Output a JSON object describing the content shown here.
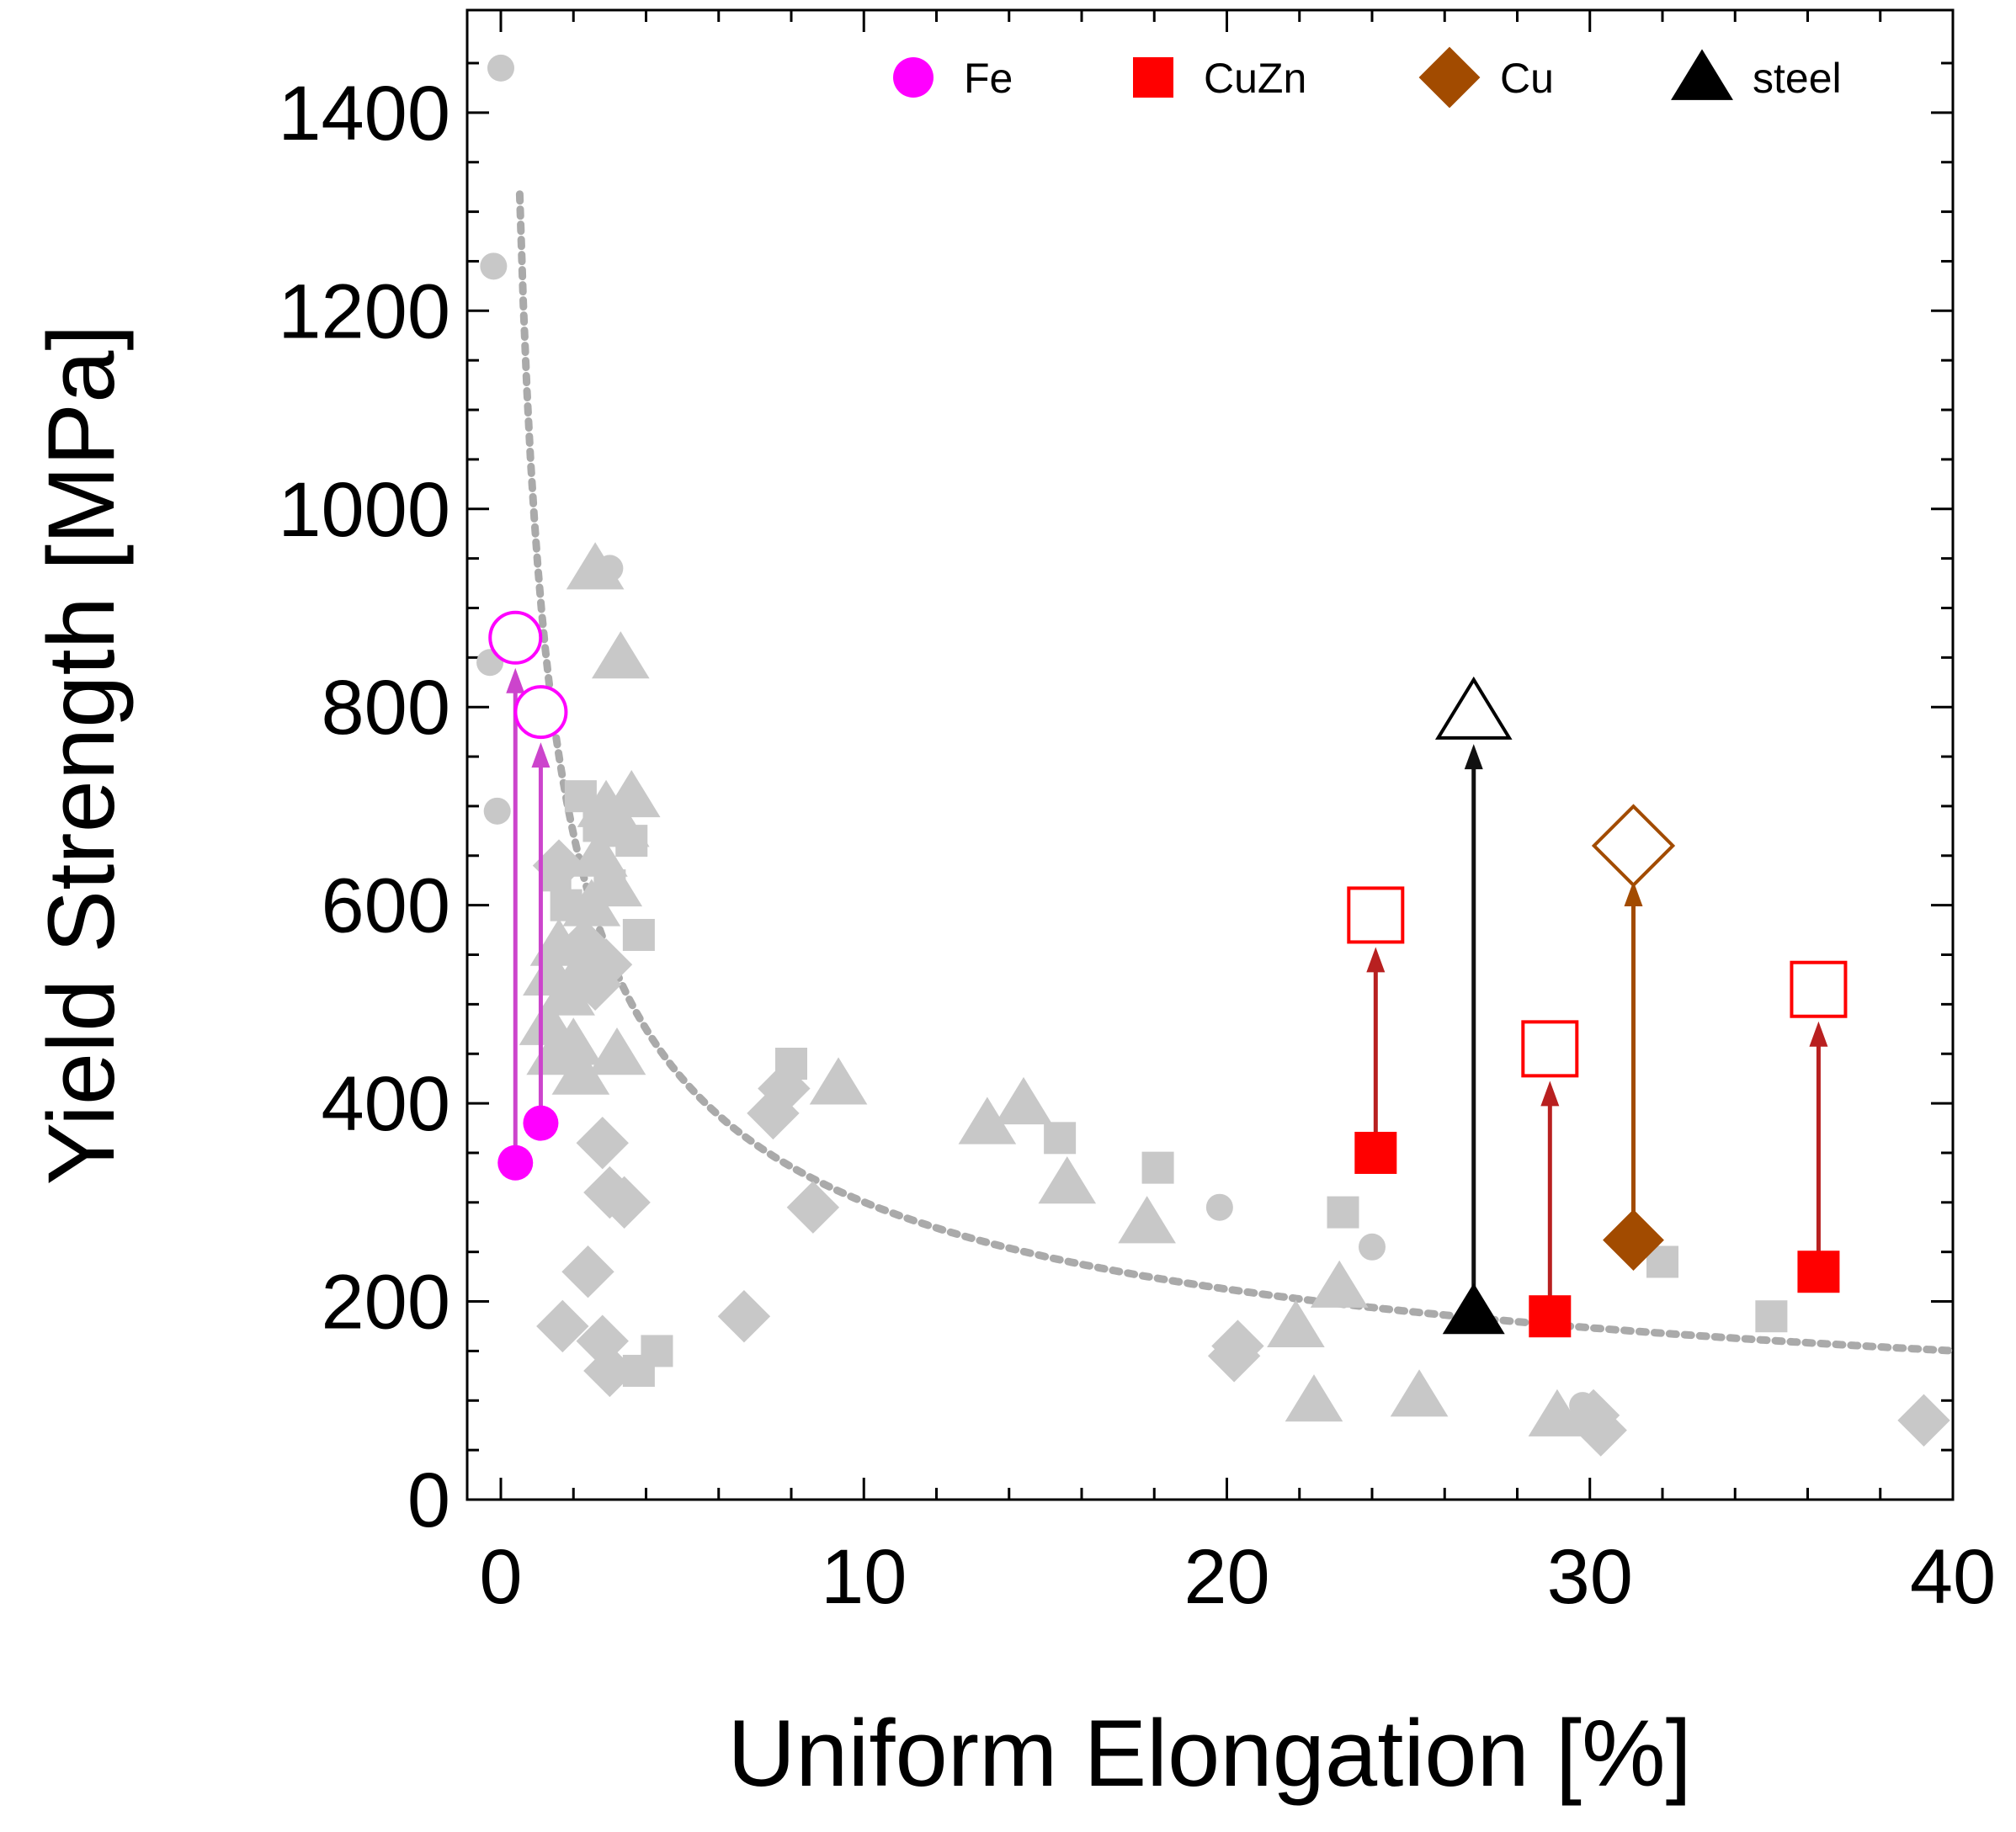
{
  "chart_data": {
    "type": "scatter",
    "xlabel": "Uniform Elongation [%]",
    "ylabel": "Yield Strength [MPa]",
    "xlim": [
      -1,
      40
    ],
    "ylim": [
      0,
      1500
    ],
    "x_ticks": [
      "0",
      "10",
      "20",
      "30",
      "40"
    ],
    "y_ticks": [
      "0",
      "200",
      "400",
      "600",
      "800",
      "1000",
      "1200",
      "1400"
    ],
    "legend_position": "top-right",
    "legend": [
      {
        "name": "Fe",
        "marker": "circle",
        "color": "#ff00ff"
      },
      {
        "name": "CuZn",
        "marker": "square",
        "color": "#ff0000"
      },
      {
        "name": "Cu",
        "marker": "diamond",
        "color": "#a24b00"
      },
      {
        "name": "steel",
        "marker": "triangle",
        "color": "#000000"
      }
    ],
    "trend_curve": {
      "style": "dotted",
      "color": "#aaaaaa",
      "approx": "y = 950 / x^0.5 (approx)"
    },
    "background_points": {
      "color": "#c8c8c8",
      "circle": [
        [
          0,
          1445
        ],
        [
          -0.2,
          1245
        ],
        [
          -0.3,
          845
        ],
        [
          -0.1,
          695
        ],
        [
          3,
          940
        ],
        [
          19.8,
          295
        ],
        [
          24,
          255
        ],
        [
          29.8,
          95
        ]
      ],
      "square": [
        [
          1.5,
          630
        ],
        [
          1.8,
          600
        ],
        [
          2.2,
          710
        ],
        [
          2.7,
          680
        ],
        [
          3,
          620
        ],
        [
          3.6,
          665
        ],
        [
          3.8,
          570
        ],
        [
          4.3,
          150
        ],
        [
          3.8,
          130
        ],
        [
          8,
          440
        ],
        [
          15.4,
          365
        ],
        [
          18.1,
          335
        ],
        [
          23.2,
          290
        ],
        [
          32,
          240
        ],
        [
          35,
          185
        ]
      ],
      "triangle": [
        [
          1.3,
          480
        ],
        [
          1.4,
          530
        ],
        [
          1.5,
          450
        ],
        [
          1.6,
          560
        ],
        [
          1.8,
          510
        ],
        [
          2,
          460
        ],
        [
          2.2,
          430
        ],
        [
          2.3,
          540
        ],
        [
          2.5,
          600
        ],
        [
          2.7,
          650
        ],
        [
          2.9,
          700
        ],
        [
          3.1,
          620
        ],
        [
          3.3,
          680
        ],
        [
          3.6,
          710
        ],
        [
          2.6,
          940
        ],
        [
          3.3,
          850
        ],
        [
          3.2,
          450
        ],
        [
          9.3,
          420
        ],
        [
          13.4,
          380
        ],
        [
          14.4,
          400
        ],
        [
          15.6,
          320
        ],
        [
          17.8,
          280
        ],
        [
          21.9,
          175
        ],
        [
          22.4,
          100
        ],
        [
          23.1,
          215
        ],
        [
          25.3,
          105
        ],
        [
          29.1,
          85
        ]
      ],
      "diamond": [
        [
          1.6,
          640
        ],
        [
          2.3,
          560
        ],
        [
          2.6,
          520
        ],
        [
          2.9,
          540
        ],
        [
          2.8,
          360
        ],
        [
          3,
          310
        ],
        [
          3.4,
          300
        ],
        [
          2.4,
          230
        ],
        [
          1.7,
          175
        ],
        [
          2.8,
          160
        ],
        [
          3,
          130
        ],
        [
          6.7,
          185
        ],
        [
          7.5,
          390
        ],
        [
          7.8,
          415
        ],
        [
          8.6,
          295
        ],
        [
          20.3,
          155
        ],
        [
          20.2,
          145
        ],
        [
          30.3,
          70
        ],
        [
          30.1,
          85
        ],
        [
          39.2,
          80
        ]
      ]
    },
    "series": [
      {
        "name": "Fe",
        "marker": "circle",
        "color": "#ff00ff",
        "x": [
          0.4,
          1.1
        ],
        "y_before": [
          340,
          380
        ],
        "y_after": [
          870,
          795
        ]
      },
      {
        "name": "CuZn",
        "marker": "square",
        "color": "#ff0000",
        "x": [
          24.1,
          28.9,
          36.3
        ],
        "y_before": [
          350,
          185,
          230
        ],
        "y_after": [
          590,
          455,
          515
        ]
      },
      {
        "name": "Cu",
        "marker": "diamond",
        "color": "#a24b00",
        "x": [
          31.2
        ],
        "y_before": [
          262
        ],
        "y_after": [
          660
        ]
      },
      {
        "name": "steel",
        "marker": "triangle",
        "color": "#000000",
        "x": [
          26.8
        ],
        "y_before": [
          190
        ],
        "y_after": [
          795
        ]
      }
    ]
  }
}
